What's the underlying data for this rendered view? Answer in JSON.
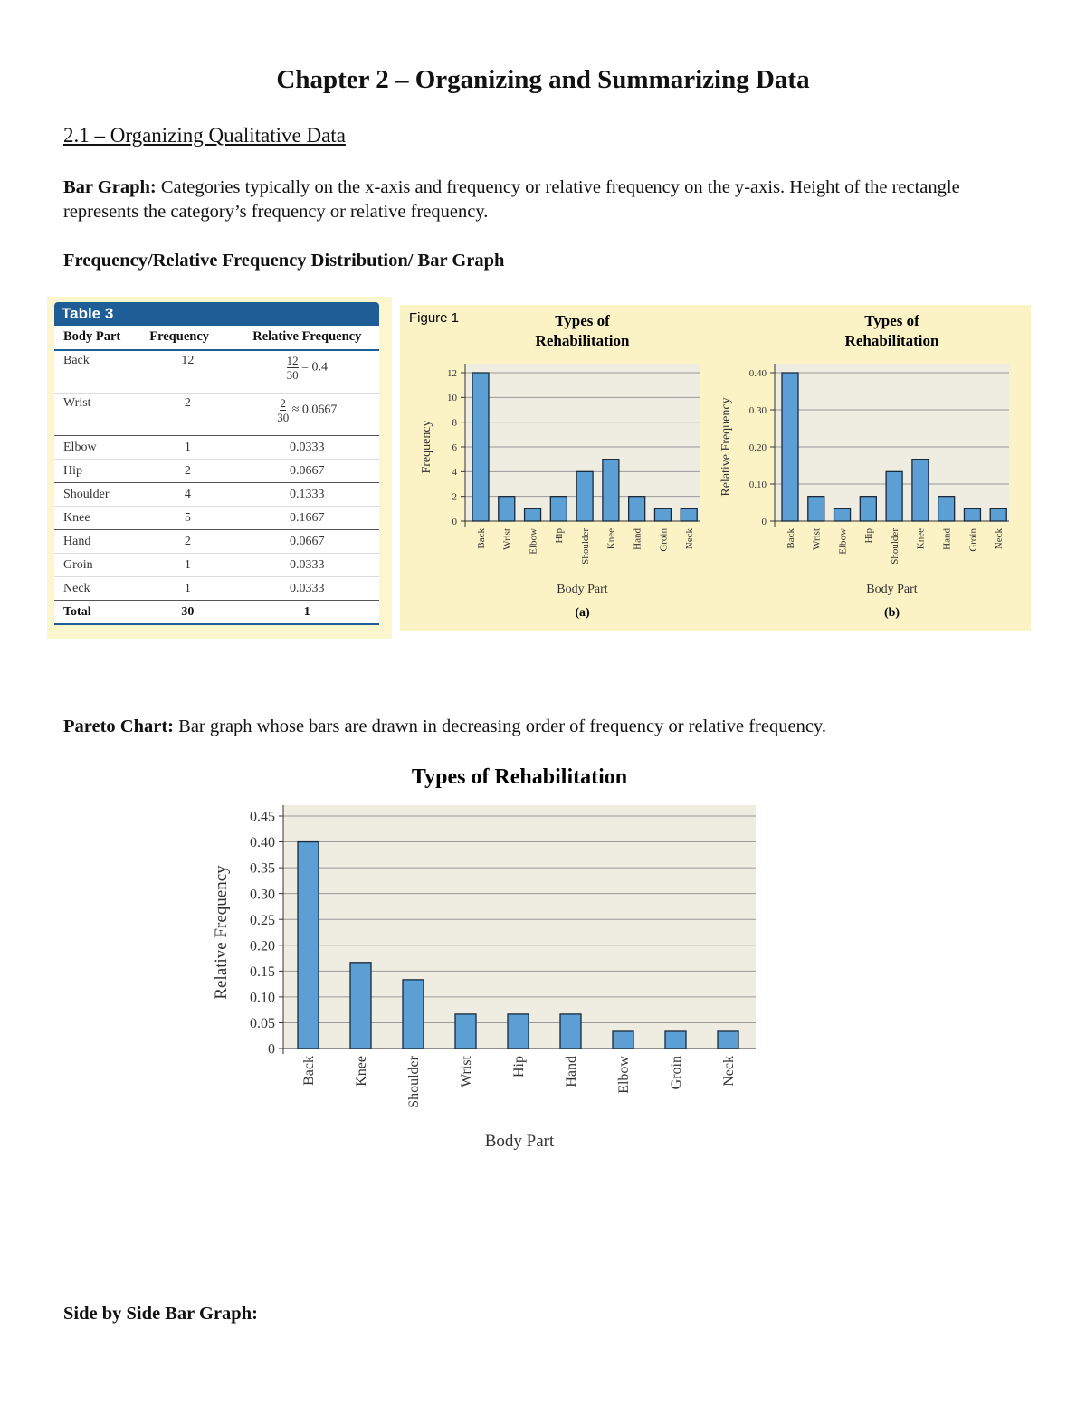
{
  "title": "Chapter 2 – Organizing and Summarizing Data",
  "section": "2.1 – Organizing Qualitative Data",
  "bar_graph": {
    "term": "Bar Graph:",
    "text": " Categories typically on the x-axis and frequency or relative frequency on the y-axis. Height of the rectangle represents the category’s frequency or relative frequency."
  },
  "freq_heading": "Frequency/Relative Frequency Distribution/ Bar Graph",
  "table": {
    "title": "Table 3",
    "headers": [
      "Body Part",
      "Frequency",
      "Relative Frequency"
    ],
    "back": {
      "part": "Back",
      "freq": "12",
      "num": "12",
      "den": "30",
      "rest": "= 0.4"
    },
    "wrist": {
      "part": "Wrist",
      "freq": "2",
      "num": "2",
      "den": "30",
      "rest": "≈ 0.0667"
    },
    "rows": [
      [
        "Elbow",
        "1",
        "0.0333"
      ],
      [
        "Hip",
        "2",
        "0.0667"
      ],
      [
        "Shoulder",
        "4",
        "0.1333"
      ],
      [
        "Knee",
        "5",
        "0.1667"
      ],
      [
        "Hand",
        "2",
        "0.0667"
      ],
      [
        "Groin",
        "1",
        "0.0333"
      ],
      [
        "Neck",
        "1",
        "0.0333"
      ]
    ],
    "total": [
      "Total",
      "30",
      "1"
    ]
  },
  "figure_label": "Figure 1",
  "pareto": {
    "term": "Pareto Chart:",
    "text": " Bar graph whose bars are drawn in decreasing order of frequency or relative frequency."
  },
  "side_by_side": "Side by Side Bar Graph:",
  "colors": {
    "bar": "#5b9fd4",
    "plot_bg": "#efece1",
    "figure_bg": "#fbf3c6",
    "table_header": "#1f5d97"
  },
  "chart_data": [
    {
      "type": "bar",
      "title": "Types of Rehabilitation",
      "xlabel": "Body Part",
      "ylabel": "Frequency",
      "caption": "(a)",
      "categories": [
        "Back",
        "Wrist",
        "Elbow",
        "Hip",
        "Shoulder",
        "Knee",
        "Hand",
        "Groin",
        "Neck"
      ],
      "values": [
        12,
        2,
        1,
        2,
        4,
        5,
        2,
        1,
        1
      ],
      "ylim": [
        0,
        12
      ],
      "yticks": [
        "0",
        "2",
        "4",
        "6",
        "8",
        "10",
        "12"
      ],
      "grid": true
    },
    {
      "type": "bar",
      "title": "Types of Rehabilitation",
      "xlabel": "Body Part",
      "ylabel": "Relative Frequency",
      "caption": "(b)",
      "categories": [
        "Back",
        "Wrist",
        "Elbow",
        "Hip",
        "Shoulder",
        "Knee",
        "Hand",
        "Groin",
        "Neck"
      ],
      "values": [
        0.4,
        0.0667,
        0.0333,
        0.0667,
        0.1333,
        0.1667,
        0.0667,
        0.0333,
        0.0333
      ],
      "ylim": [
        0,
        0.4
      ],
      "yticks": [
        "0",
        "0.10",
        "0.20",
        "0.30",
        "0.40"
      ],
      "grid": true
    },
    {
      "type": "bar",
      "title": "Types of Rehabilitation",
      "xlabel": "Body Part",
      "ylabel": "Relative Frequency",
      "categories": [
        "Back",
        "Knee",
        "Shoulder",
        "Wrist",
        "Hip",
        "Hand",
        "Elbow",
        "Groin",
        "Neck"
      ],
      "values": [
        0.4,
        0.1667,
        0.1333,
        0.0667,
        0.0667,
        0.0667,
        0.0333,
        0.0333,
        0.0333
      ],
      "ylim": [
        0,
        0.45
      ],
      "yticks": [
        "0",
        "0.05",
        "0.10",
        "0.15",
        "0.20",
        "0.25",
        "0.30",
        "0.35",
        "0.40",
        "0.45"
      ],
      "grid": true
    }
  ]
}
